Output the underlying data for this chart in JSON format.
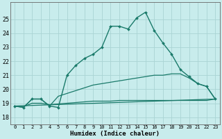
{
  "title": "",
  "xlabel": "Humidex (Indice chaleur)",
  "bg_color": "#c8ecec",
  "grid_color": "#aad4d4",
  "line_color": "#1a7a6a",
  "xlim": [
    -0.5,
    23.5
  ],
  "ylim": [
    17.5,
    26.2
  ],
  "yticks": [
    18,
    19,
    20,
    21,
    22,
    23,
    24,
    25
  ],
  "xticks": [
    0,
    1,
    2,
    3,
    4,
    5,
    6,
    7,
    8,
    9,
    10,
    11,
    12,
    13,
    14,
    15,
    16,
    17,
    18,
    19,
    20,
    21,
    22,
    23
  ],
  "series1_x": [
    0,
    1,
    2,
    3,
    4,
    5,
    6,
    7,
    8,
    9,
    10,
    11,
    12,
    13,
    14,
    15,
    16,
    17,
    18,
    19,
    20,
    21,
    22,
    23
  ],
  "series1_y": [
    18.8,
    18.7,
    19.3,
    19.3,
    18.8,
    18.7,
    21.0,
    21.7,
    22.2,
    22.5,
    23.0,
    24.5,
    24.5,
    24.3,
    25.1,
    25.5,
    24.2,
    23.3,
    22.5,
    21.4,
    20.9,
    20.4,
    20.2,
    19.3
  ],
  "series2_x": [
    0,
    1,
    2,
    3,
    4,
    5,
    6,
    7,
    8,
    9,
    10,
    11,
    12,
    13,
    14,
    15,
    16,
    17,
    18,
    19,
    20,
    21,
    22,
    23
  ],
  "series2_y": [
    18.8,
    18.7,
    19.3,
    19.3,
    18.8,
    19.5,
    19.7,
    19.9,
    20.1,
    20.3,
    20.4,
    20.5,
    20.6,
    20.7,
    20.8,
    20.9,
    21.0,
    21.0,
    21.1,
    21.1,
    20.8,
    20.4,
    20.2,
    19.3
  ],
  "series3_x": [
    0,
    23
  ],
  "series3_y": [
    18.8,
    19.3
  ],
  "series4_x": [
    0,
    1,
    2,
    3,
    4,
    5,
    6,
    7,
    8,
    9,
    10,
    11,
    12,
    13,
    14,
    15,
    16,
    17,
    18,
    19,
    20,
    21,
    22,
    23
  ],
  "series4_y": [
    18.8,
    18.75,
    19.0,
    19.0,
    18.9,
    18.95,
    19.0,
    19.05,
    19.1,
    19.15,
    19.15,
    19.15,
    19.2,
    19.2,
    19.2,
    19.2,
    19.2,
    19.2,
    19.2,
    19.2,
    19.2,
    19.2,
    19.2,
    19.3
  ]
}
